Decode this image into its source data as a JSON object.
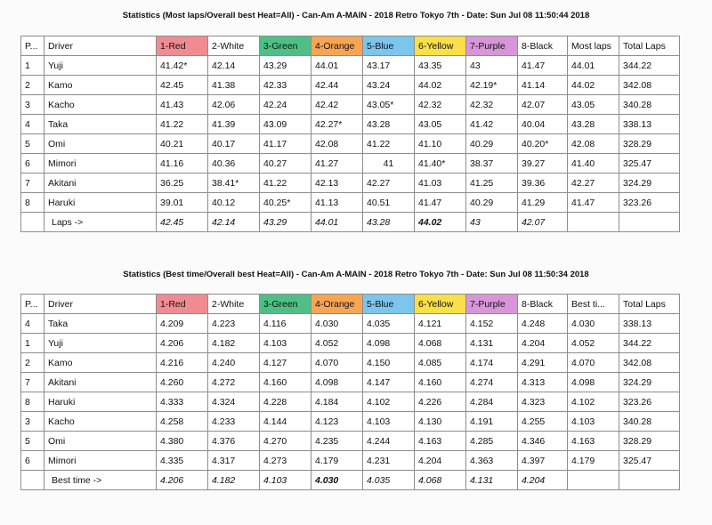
{
  "table1": {
    "title": "Statistics (Most laps/Overall best Heat=All) - Can-Am A-MAIN - 2018 Retro Tokyo 7th - Date: Sun Jul 08 11:50:44 2018",
    "headers": [
      "P...",
      "Driver",
      "1-Red",
      "2-White",
      "3-Green",
      "4-Orange",
      "5-Blue",
      "6-Yellow",
      "7-Purple",
      "8-Black",
      "Most laps",
      "Total Laps"
    ],
    "rows": [
      [
        "1",
        "Yuji",
        "41.42*",
        "42.14",
        "43.29",
        "44.01",
        "43.17",
        "43.35",
        "43",
        "41.47",
        "44.01",
        "344.22"
      ],
      [
        "2",
        "Kamo",
        "42.45",
        "41.38",
        "42.33",
        "42.44",
        "43.24",
        "44.02",
        "42.19*",
        "41.14",
        "44.02",
        "342.08"
      ],
      [
        "3",
        "Kacho",
        "41.43",
        "42.06",
        "42.24",
        "42.42",
        "43.05*",
        "42.32",
        "42.32",
        "42.07",
        "43.05",
        "340.28"
      ],
      [
        "4",
        "Taka",
        "41.22",
        "41.39",
        "43.09",
        "42.27*",
        "43.28",
        "43.05",
        "41.42",
        "40.04",
        "43.28",
        "338.13"
      ],
      [
        "5",
        "Omi",
        "40.21",
        "40.17",
        "41.17",
        "42.08",
        "41.22",
        "41.10",
        "40.29",
        "40.20*",
        "42.08",
        "328.29"
      ],
      [
        "6",
        "Mimori",
        "41.16",
        "40.36",
        "40.27",
        "41.27",
        "41",
        "41.40*",
        "38.37",
        "39.27",
        "41.40",
        "325.47"
      ],
      [
        "7",
        "Akitani",
        "36.25",
        "38.41*",
        "41.22",
        "42.13",
        "42.27",
        "41.03",
        "41.25",
        "39.36",
        "42.27",
        "324.29"
      ],
      [
        "8",
        "Haruki",
        "39.01",
        "40.12",
        "40.25*",
        "41.13",
        "40.51",
        "41.47",
        "40.29",
        "41.29",
        "41.47",
        "323.26"
      ]
    ],
    "footer": [
      "Laps ->",
      "42.45",
      "42.14",
      "43.29",
      "44.01",
      "43.28",
      "44.02",
      "43",
      "42.07"
    ]
  },
  "table2": {
    "title": "Statistics (Best time/Overall best Heat=All) - Can-Am A-MAIN - 2018 Retro Tokyo 7th - Date: Sun Jul 08 11:50:34 2018",
    "headers": [
      "P...",
      "Driver",
      "1-Red",
      "2-White",
      "3-Green",
      "4-Orange",
      "5-Blue",
      "6-Yellow",
      "7-Purple",
      "8-Black",
      "Best ti...",
      "Total Laps"
    ],
    "rows": [
      [
        "4",
        "Taka",
        "4.209",
        "4.223",
        "4.116",
        "4.030",
        "4.035",
        "4.121",
        "4.152",
        "4.248",
        "4.030",
        "338.13"
      ],
      [
        "1",
        "Yuji",
        "4.206",
        "4.182",
        "4.103",
        "4.052",
        "4.098",
        "4.068",
        "4.131",
        "4.204",
        "4.052",
        "344.22"
      ],
      [
        "2",
        "Kamo",
        "4.216",
        "4.240",
        "4.127",
        "4.070",
        "4.150",
        "4.085",
        "4.174",
        "4.291",
        "4.070",
        "342.08"
      ],
      [
        "7",
        "Akitani",
        "4.260",
        "4.272",
        "4.160",
        "4.098",
        "4.147",
        "4.160",
        "4.274",
        "4.313",
        "4.098",
        "324.29"
      ],
      [
        "8",
        "Haruki",
        "4.333",
        "4.324",
        "4.228",
        "4.184",
        "4.102",
        "4.226",
        "4.284",
        "4.323",
        "4.102",
        "323.26"
      ],
      [
        "3",
        "Kacho",
        "4.258",
        "4.233",
        "4.144",
        "4.123",
        "4.103",
        "4.130",
        "4.191",
        "4.255",
        "4.103",
        "340.28"
      ],
      [
        "5",
        "Omi",
        "4.380",
        "4.376",
        "4.270",
        "4.235",
        "4.244",
        "4.163",
        "4.285",
        "4.346",
        "4.163",
        "328.29"
      ],
      [
        "6",
        "Mimori",
        "4.335",
        "4.317",
        "4.273",
        "4.179",
        "4.231",
        "4.204",
        "4.363",
        "4.397",
        "4.179",
        "325.47"
      ]
    ],
    "footer": [
      "Best time ->",
      "4.206",
      "4.182",
      "4.103",
      "4.030",
      "4.035",
      "4.068",
      "4.131",
      "4.204"
    ]
  },
  "colors": {
    "red": "#f08c91",
    "green": "#4fbf86",
    "orange": "#f7a554",
    "blue": "#7cc6ee",
    "yellow": "#f9df4a",
    "purple": "#d896d8",
    "cell_best": "#5fcb5f",
    "cell_good": "#b8e6b0",
    "cell_slow": "#f8ca73"
  }
}
